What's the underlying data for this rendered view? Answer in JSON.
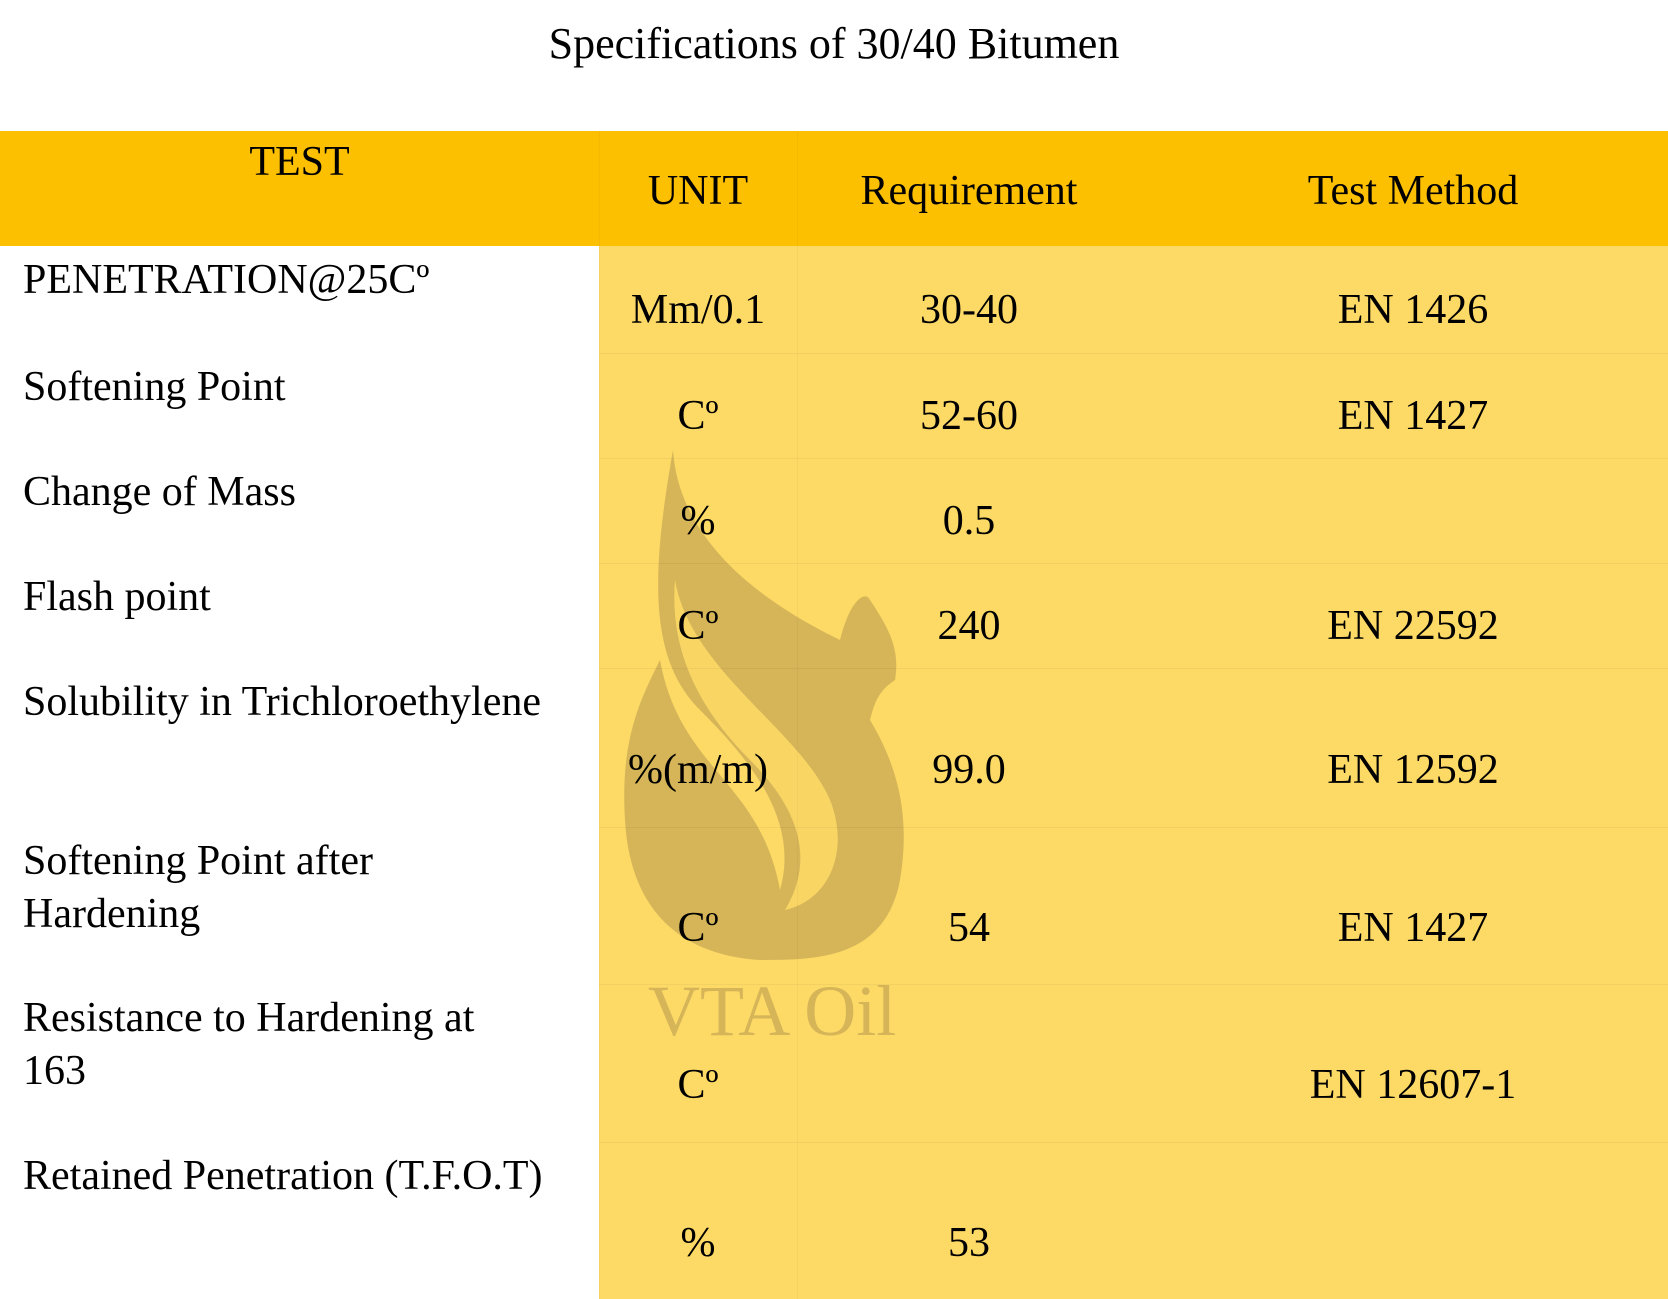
{
  "title": "Specifications of 30/40 Bitumen",
  "colors": {
    "header": "#FDC000",
    "body": "#FDD966",
    "watermark": "#D5B558"
  },
  "watermark": {
    "text": "VTA Oil",
    "icon": "flame-logo-icon"
  },
  "table": {
    "headers": [
      "TEST",
      "UNIT",
      "Requirement",
      "Test Method"
    ],
    "rows": [
      {
        "test": "PENETRATION@25Cº",
        "unit": "Mm/0.1",
        "requirement": "30-40",
        "method": "EN 1426"
      },
      {
        "test": "Softening Point",
        "unit": "Cº",
        "requirement": "52-60",
        "method": "EN 1427"
      },
      {
        "test": "Change of Mass",
        "unit": "%",
        "requirement": "0.5",
        "method": ""
      },
      {
        "test": "Flash point",
        "unit": "Cº",
        "requirement": "240",
        "method": "EN 22592"
      },
      {
        "test": "Solubility in Trichloroethylene",
        "unit": "%(m/m)",
        "requirement": "99.0",
        "method": "EN 12592"
      },
      {
        "test": "Softening Point after Hardening",
        "unit": "Cº",
        "requirement": "54",
        "method": "EN 1427"
      },
      {
        "test": "Resistance to Hardening at 163",
        "unit": "Cº",
        "requirement": "",
        "method": "EN 12607-1"
      },
      {
        "test": "Retained Penetration (T.F.O.T)",
        "unit": "%",
        "requirement": "53",
        "method": ""
      }
    ]
  }
}
